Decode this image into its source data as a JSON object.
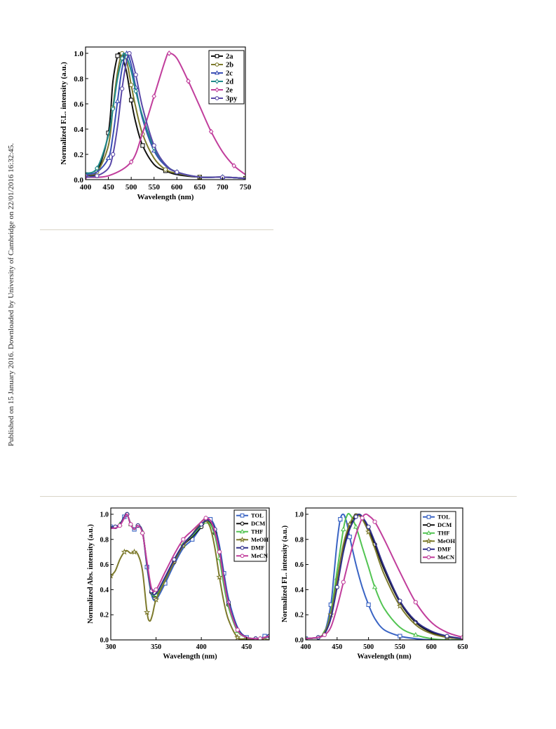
{
  "sidebar_text": "Published on 15 January 2016. Downloaded by University of Cambridge on 22/01/2016 16:32:45.",
  "chart_data": [
    {
      "type": "line",
      "xlabel": "Wavelength (nm)",
      "ylabel": "Normalized F.L. intensity (a.u.)",
      "xlim": [
        400,
        750
      ],
      "ylim": [
        0,
        1.05
      ],
      "xticks": [
        400,
        450,
        500,
        550,
        600,
        650,
        700,
        750
      ],
      "yticks": [
        0.0,
        0.2,
        0.4,
        0.6,
        0.8,
        1.0
      ],
      "legend_position": "top-right",
      "series": [
        {
          "name": "2a",
          "color": "#111111",
          "marker": "square",
          "peak": 473,
          "width_left": 20,
          "width_right": 38,
          "x": [
            400,
            425,
            450,
            460,
            470,
            475,
            480,
            490,
            500,
            510,
            525,
            550,
            575,
            600,
            650,
            700,
            750
          ],
          "values": [
            0.04,
            0.06,
            0.37,
            0.78,
            0.98,
            1.0,
            0.97,
            0.85,
            0.63,
            0.45,
            0.27,
            0.12,
            0.07,
            0.04,
            0.02,
            0.02,
            0.01
          ]
        },
        {
          "name": "2b",
          "color": "#7d7a2c",
          "marker": "circle",
          "peak": 480,
          "width_left": 22,
          "width_right": 40,
          "x": [
            400,
            425,
            450,
            460,
            470,
            480,
            490,
            500,
            510,
            525,
            550,
            575,
            600,
            650,
            700,
            750
          ],
          "values": [
            0.04,
            0.06,
            0.27,
            0.57,
            0.85,
            1.0,
            0.94,
            0.75,
            0.57,
            0.36,
            0.17,
            0.08,
            0.05,
            0.02,
            0.02,
            0.01
          ]
        },
        {
          "name": "2c",
          "color": "#3a4fb5",
          "marker": "triangle",
          "peak": 490,
          "width_left": 21,
          "width_right": 40,
          "x": [
            400,
            425,
            450,
            460,
            470,
            480,
            490,
            500,
            510,
            525,
            550,
            575,
            600,
            650,
            700,
            750
          ],
          "values": [
            0.04,
            0.06,
            0.17,
            0.35,
            0.62,
            0.88,
            1.0,
            0.91,
            0.73,
            0.48,
            0.23,
            0.11,
            0.06,
            0.02,
            0.02,
            0.01
          ]
        },
        {
          "name": "2d",
          "color": "#1f8a8a",
          "marker": "diamond",
          "peak": 484,
          "width_left": 26,
          "width_right": 44,
          "x": [
            400,
            425,
            450,
            460,
            470,
            480,
            484,
            490,
            500,
            510,
            525,
            550,
            575,
            600,
            650,
            700,
            750
          ],
          "values": [
            0.05,
            0.09,
            0.35,
            0.56,
            0.8,
            0.96,
            1.0,
            0.97,
            0.86,
            0.7,
            0.5,
            0.25,
            0.12,
            0.06,
            0.02,
            0.02,
            0.01
          ]
        },
        {
          "name": "2e",
          "color": "#c13e9c",
          "marker": "diamond",
          "peak": 583,
          "width_left": 36,
          "width_right": 58,
          "x": [
            400,
            450,
            500,
            525,
            550,
            575,
            583,
            600,
            625,
            650,
            675,
            700,
            725,
            750
          ],
          "values": [
            0.02,
            0.03,
            0.14,
            0.37,
            0.66,
            0.95,
            1.0,
            0.96,
            0.78,
            0.58,
            0.38,
            0.22,
            0.11,
            0.04
          ]
        },
        {
          "name": "3py",
          "color": "#5a48a8",
          "marker": "circle",
          "peak": 496,
          "width_left": 17,
          "width_right": 36,
          "x": [
            400,
            425,
            450,
            460,
            470,
            480,
            490,
            496,
            500,
            510,
            525,
            550,
            575,
            600,
            650,
            700,
            750
          ],
          "values": [
            0.02,
            0.03,
            0.09,
            0.2,
            0.42,
            0.72,
            0.94,
            1.0,
            0.97,
            0.83,
            0.57,
            0.27,
            0.12,
            0.06,
            0.02,
            0.02,
            0.01
          ]
        }
      ]
    },
    {
      "type": "line",
      "xlabel": "Wavelength (nm)",
      "ylabel": "Normalized Abs. intensity (a.u.)",
      "xlim": [
        300,
        475
      ],
      "ylim": [
        0,
        1.05
      ],
      "xticks": [
        300,
        350,
        400,
        450
      ],
      "yticks": [
        0.0,
        0.2,
        0.4,
        0.6,
        0.8,
        1.0
      ],
      "legend_position": "top-right",
      "series": [
        {
          "name": "TOL",
          "color": "#3a64c4",
          "marker": "square",
          "x": [
            300,
            305,
            310,
            315,
            318,
            322,
            326,
            330,
            335,
            340,
            345,
            350,
            360,
            370,
            380,
            390,
            400,
            405,
            410,
            415,
            420,
            425,
            430,
            440,
            450,
            460,
            465,
            470,
            475
          ],
          "values": [
            0.9,
            0.9,
            0.92,
            0.98,
            1.0,
            0.92,
            0.88,
            0.91,
            0.86,
            0.58,
            0.36,
            0.32,
            0.45,
            0.6,
            0.73,
            0.8,
            0.9,
            0.95,
            0.96,
            0.9,
            0.75,
            0.53,
            0.33,
            0.1,
            0.02,
            0.01,
            0.01,
            0.03,
            0.04
          ]
        },
        {
          "name": "DCM",
          "color": "#111111",
          "marker": "circle",
          "x": [
            300,
            305,
            310,
            315,
            318,
            322,
            326,
            330,
            335,
            340,
            345,
            350,
            360,
            370,
            380,
            390,
            400,
            405,
            410,
            415,
            420,
            425,
            430,
            440,
            450,
            460,
            465,
            470,
            475
          ],
          "values": [
            0.9,
            0.9,
            0.92,
            0.98,
            1.0,
            0.92,
            0.88,
            0.91,
            0.86,
            0.6,
            0.38,
            0.35,
            0.48,
            0.62,
            0.75,
            0.82,
            0.9,
            0.94,
            0.93,
            0.85,
            0.68,
            0.46,
            0.28,
            0.08,
            0.02,
            0.01,
            0.01,
            0.02,
            0.03
          ]
        },
        {
          "name": "THF",
          "color": "#52c452",
          "marker": "triangle",
          "x": [
            300,
            305,
            310,
            315,
            318,
            322,
            326,
            330,
            335,
            340,
            345,
            350,
            360,
            370,
            380,
            390,
            400,
            405,
            410,
            415,
            420,
            425,
            430,
            440,
            450,
            460,
            465,
            470,
            475
          ],
          "values": [
            0.9,
            0.9,
            0.92,
            0.98,
            1.0,
            0.92,
            0.88,
            0.91,
            0.86,
            0.6,
            0.38,
            0.36,
            0.49,
            0.63,
            0.76,
            0.83,
            0.91,
            0.94,
            0.92,
            0.83,
            0.65,
            0.43,
            0.26,
            0.07,
            0.02,
            0.01,
            0.01,
            0.02,
            0.03
          ]
        },
        {
          "name": "MeOH",
          "color": "#7d7a2c",
          "marker": "star",
          "x": [
            300,
            305,
            310,
            315,
            318,
            322,
            326,
            330,
            335,
            340,
            343,
            346,
            350,
            360,
            370,
            380,
            390,
            400,
            405,
            410,
            415,
            420,
            425,
            430,
            440,
            450,
            460,
            470,
            475
          ],
          "values": [
            0.51,
            0.55,
            0.64,
            0.7,
            0.71,
            0.69,
            0.7,
            0.68,
            0.55,
            0.22,
            0.15,
            0.2,
            0.32,
            0.47,
            0.62,
            0.75,
            0.84,
            0.94,
            0.95,
            0.89,
            0.73,
            0.5,
            0.3,
            0.16,
            0.02,
            0.01,
            0.0,
            0.0,
            0.0
          ]
        },
        {
          "name": "DMF",
          "color": "#2f2f8a",
          "marker": "circle",
          "x": [
            300,
            305,
            310,
            315,
            318,
            322,
            326,
            330,
            335,
            340,
            345,
            350,
            360,
            370,
            380,
            390,
            400,
            405,
            410,
            415,
            420,
            425,
            430,
            440,
            450,
            460,
            465,
            470,
            475
          ],
          "values": [
            0.9,
            0.9,
            0.92,
            0.98,
            1.0,
            0.92,
            0.88,
            0.91,
            0.86,
            0.6,
            0.39,
            0.37,
            0.5,
            0.64,
            0.76,
            0.84,
            0.92,
            0.95,
            0.95,
            0.88,
            0.72,
            0.5,
            0.3,
            0.09,
            0.02,
            0.01,
            0.01,
            0.02,
            0.03
          ]
        },
        {
          "name": "MeCN",
          "color": "#c13e9c",
          "marker": "circle",
          "x": [
            300,
            305,
            310,
            315,
            318,
            322,
            326,
            330,
            335,
            340,
            345,
            350,
            360,
            370,
            380,
            390,
            400,
            405,
            410,
            415,
            420,
            425,
            430,
            440,
            450,
            460,
            465,
            470,
            475
          ],
          "values": [
            0.89,
            0.89,
            0.91,
            0.97,
            1.0,
            0.92,
            0.88,
            0.91,
            0.85,
            0.62,
            0.41,
            0.4,
            0.54,
            0.68,
            0.8,
            0.87,
            0.94,
            0.97,
            0.95,
            0.86,
            0.7,
            0.48,
            0.29,
            0.08,
            0.02,
            0.01,
            0.01,
            0.02,
            0.03
          ]
        }
      ]
    },
    {
      "type": "line",
      "xlabel": "Wavelength (nm)",
      "ylabel": "Normalized FL. intensity (a.u.)",
      "xlim": [
        400,
        650
      ],
      "ylim": [
        0,
        1.05
      ],
      "xticks": [
        400,
        450,
        500,
        550,
        600,
        650
      ],
      "yticks": [
        0.0,
        0.2,
        0.4,
        0.6,
        0.8,
        1.0
      ],
      "legend_position": "top-right",
      "series": [
        {
          "name": "TOL",
          "color": "#3a64c4",
          "marker": "square",
          "x": [
            400,
            420,
            430,
            440,
            445,
            450,
            455,
            460,
            465,
            470,
            480,
            490,
            500,
            510,
            525,
            550,
            575,
            600,
            625,
            650
          ],
          "values": [
            0.01,
            0.02,
            0.06,
            0.28,
            0.52,
            0.78,
            0.96,
            1.0,
            0.94,
            0.82,
            0.6,
            0.42,
            0.28,
            0.17,
            0.08,
            0.03,
            0.01,
            0.0,
            0.0,
            0.0
          ]
        },
        {
          "name": "DCM",
          "color": "#111111",
          "marker": "circle",
          "x": [
            400,
            420,
            430,
            440,
            450,
            460,
            470,
            480,
            490,
            500,
            510,
            525,
            550,
            575,
            600,
            625,
            650
          ],
          "values": [
            0.01,
            0.02,
            0.06,
            0.2,
            0.48,
            0.74,
            0.9,
            0.99,
            0.97,
            0.88,
            0.76,
            0.56,
            0.3,
            0.14,
            0.06,
            0.02,
            0.01
          ]
        },
        {
          "name": "THF",
          "color": "#52c452",
          "marker": "triangle",
          "x": [
            400,
            420,
            430,
            440,
            450,
            460,
            465,
            470,
            480,
            490,
            500,
            510,
            525,
            550,
            575,
            600,
            625,
            650
          ],
          "values": [
            0.01,
            0.02,
            0.06,
            0.22,
            0.55,
            0.88,
            0.98,
            1.0,
            0.9,
            0.74,
            0.58,
            0.42,
            0.25,
            0.1,
            0.04,
            0.01,
            0.0,
            0.0
          ]
        },
        {
          "name": "MeOH",
          "color": "#7d7a2c",
          "marker": "star",
          "x": [
            400,
            420,
            430,
            440,
            450,
            460,
            470,
            480,
            490,
            500,
            510,
            525,
            550,
            575,
            600,
            625,
            650
          ],
          "values": [
            0.01,
            0.02,
            0.06,
            0.2,
            0.48,
            0.76,
            0.92,
            1.0,
            0.96,
            0.86,
            0.73,
            0.52,
            0.27,
            0.12,
            0.05,
            0.02,
            0.01
          ]
        },
        {
          "name": "DMF",
          "color": "#2f2f8a",
          "marker": "circle",
          "x": [
            400,
            420,
            430,
            440,
            450,
            460,
            470,
            480,
            485,
            490,
            500,
            510,
            525,
            550,
            575,
            600,
            625,
            650
          ],
          "values": [
            0.01,
            0.02,
            0.05,
            0.17,
            0.42,
            0.7,
            0.88,
            0.98,
            1.0,
            0.98,
            0.9,
            0.78,
            0.58,
            0.31,
            0.15,
            0.07,
            0.03,
            0.01
          ]
        },
        {
          "name": "MeCN",
          "color": "#c13e9c",
          "marker": "circle",
          "x": [
            400,
            420,
            430,
            440,
            450,
            460,
            470,
            480,
            490,
            495,
            500,
            510,
            525,
            550,
            575,
            600,
            625,
            650
          ],
          "values": [
            0.01,
            0.02,
            0.04,
            0.1,
            0.26,
            0.46,
            0.66,
            0.84,
            0.97,
            1.0,
            0.99,
            0.94,
            0.8,
            0.54,
            0.3,
            0.14,
            0.06,
            0.02
          ]
        }
      ]
    }
  ]
}
